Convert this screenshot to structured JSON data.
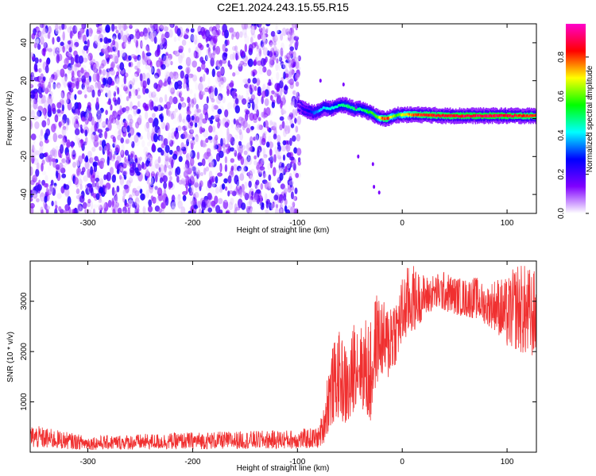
{
  "title": "C2E1.2024.243.15.55.R15",
  "chart_data": [
    {
      "type": "heatmap",
      "title": "C2E1.2024.243.15.55.R15",
      "xlabel": "Height of straight line (km)",
      "ylabel": "Frequency (Hz)",
      "xlim": [
        -355,
        128
      ],
      "ylim": [
        -50,
        50
      ],
      "xticks": [
        -300,
        -200,
        -100,
        0,
        100
      ],
      "yticks": [
        -40,
        -20,
        0,
        20,
        40
      ],
      "colorbar": {
        "label": "Normalized spectral amplitude",
        "range": [
          0,
          0.97
        ],
        "ticks": [
          0.0,
          0.2,
          0.4,
          0.6,
          0.8
        ],
        "colors": [
          "#ffffff",
          "#8000ff",
          "#0000ff",
          "#00ffff",
          "#00ff00",
          "#ffff00",
          "#ff0000",
          "#ff00cc"
        ]
      },
      "noise_region": {
        "x_range": [
          -355,
          -98
        ],
        "freq_range": [
          -50,
          50
        ],
        "typical_amplitude": 0.1
      },
      "signal_ridge": {
        "x": [
          -100,
          -95,
          -90,
          -85,
          -80,
          -75,
          -70,
          -65,
          -60,
          -55,
          -50,
          -45,
          -40,
          -35,
          -30,
          -25,
          -20,
          -15,
          -10,
          -5,
          0,
          10,
          20,
          40,
          60,
          80,
          100,
          110,
          120,
          128
        ],
        "freq": [
          7,
          5,
          4,
          3,
          4,
          6,
          5,
          6,
          7,
          7,
          6,
          5,
          5,
          4,
          3,
          1,
          0,
          0,
          1,
          2,
          2,
          2,
          2,
          1.5,
          1.5,
          1.5,
          1.5,
          1.5,
          1.5,
          1.5
        ],
        "amplitude": [
          0.15,
          0.25,
          0.3,
          0.35,
          0.4,
          0.45,
          0.45,
          0.5,
          0.5,
          0.55,
          0.55,
          0.55,
          0.5,
          0.55,
          0.6,
          0.6,
          0.85,
          0.9,
          0.7,
          0.6,
          0.75,
          0.85,
          0.9,
          0.92,
          0.95,
          0.95,
          0.95,
          0.92,
          0.9,
          0.9
        ]
      },
      "sparse_points": {
        "x": [
          -78,
          -56,
          -44,
          -42,
          -28,
          -27,
          -22
        ],
        "freq": [
          20,
          18,
          6,
          -20,
          -24,
          -36,
          -39
        ]
      }
    },
    {
      "type": "line",
      "xlabel": "Height of straight line (km)",
      "ylabel": "SNR (10 * v/v)",
      "xlim": [
        -355,
        128
      ],
      "ylim": [
        0,
        3800
      ],
      "xticks": [
        -300,
        -200,
        -100,
        0,
        100
      ],
      "yticks": [
        1000,
        2000,
        3000
      ],
      "color": "#f03030",
      "envelope": {
        "x": [
          -355,
          -300,
          -250,
          -200,
          -150,
          -100,
          -80,
          -75,
          -70,
          -65,
          -60,
          -55,
          -50,
          -45,
          -40,
          -35,
          -30,
          -25,
          -20,
          -15,
          -10,
          -5,
          0,
          5,
          10,
          15,
          20,
          25,
          30,
          40,
          50,
          60,
          70,
          80,
          90,
          100,
          110,
          120,
          128
        ],
        "low": [
          0,
          0,
          0,
          0,
          0,
          0,
          0,
          50,
          150,
          300,
          400,
          200,
          200,
          600,
          700,
          300,
          100,
          1000,
          1200,
          1100,
          1200,
          1600,
          1800,
          2000,
          2100,
          2300,
          2500,
          2600,
          2700,
          2650,
          2600,
          2550,
          2500,
          2400,
          2200,
          1800,
          1700,
          1500,
          1600
        ],
        "high": [
          550,
          320,
          360,
          400,
          420,
          450,
          500,
          900,
          1900,
          2200,
          2400,
          2200,
          2000,
          2900,
          2500,
          2700,
          2600,
          3200,
          3100,
          2900,
          3300,
          3100,
          3500,
          3700,
          3750,
          3600,
          3550,
          3500,
          3550,
          3600,
          3500,
          3450,
          3500,
          3300,
          3500,
          3450,
          3800,
          3700,
          3600
        ]
      }
    }
  ]
}
